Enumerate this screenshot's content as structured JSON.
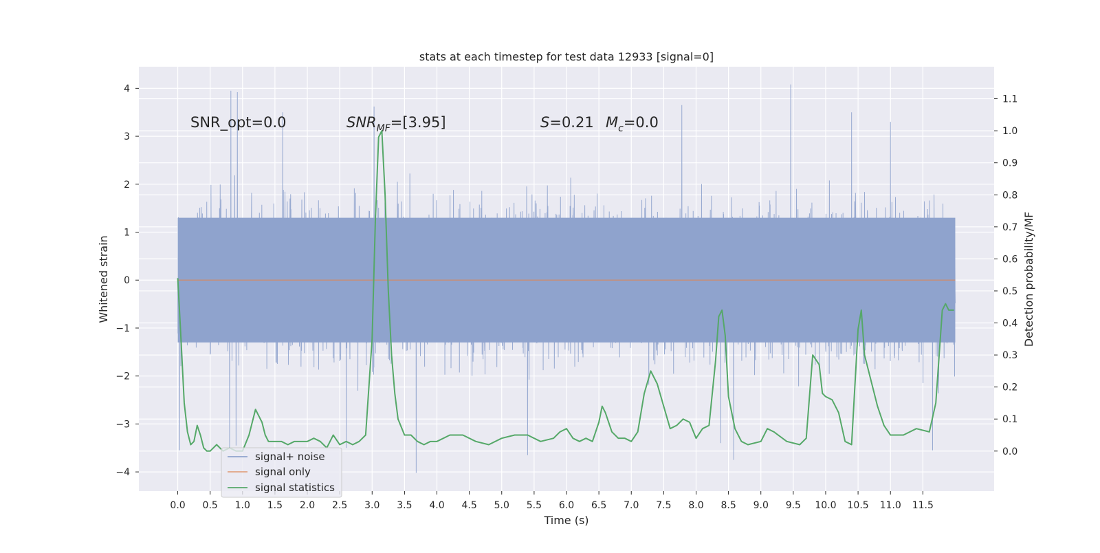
{
  "chart_data": {
    "type": "line",
    "title": "stats at each timestep for test data 12933 [signal=0]",
    "xlabel": "Time (s)",
    "ylabel_left": "Whitened strain",
    "ylabel_right": "Detection probability/MF",
    "xlim": [
      -0.6,
      12.6
    ],
    "ylim_left": [
      -4.4,
      4.45
    ],
    "ylim_right": [
      -0.125,
      1.2
    ],
    "x_ticks": [
      0.0,
      0.5,
      1.0,
      1.5,
      2.0,
      2.5,
      3.0,
      3.5,
      4.0,
      4.5,
      5.0,
      5.5,
      6.0,
      6.5,
      7.0,
      7.5,
      8.0,
      8.5,
      9.0,
      9.5,
      10.0,
      10.5,
      11.0,
      11.5
    ],
    "x_tick_labels": [
      "0.0",
      "0.5",
      "1.0",
      "1.5",
      "2.0",
      "2.5",
      "3.0",
      "3.5",
      "4.0",
      "4.5",
      "5.0",
      "5.5",
      "6.0",
      "6.5",
      "7.0",
      "7.5",
      "8.0",
      "8.5",
      "9.0",
      "9.5",
      "10.0",
      "10.5",
      "11.0",
      "11.5"
    ],
    "y_left_ticks": [
      4,
      3,
      2,
      1,
      0,
      -1,
      -2,
      -3,
      -4
    ],
    "y_left_tick_labels": [
      "4",
      "3",
      "2",
      "1",
      "0",
      "−1",
      "−2",
      "−3",
      "−4"
    ],
    "y_right_ticks": [
      1.1,
      1.0,
      0.9,
      0.8,
      0.7,
      0.6,
      0.5,
      0.4,
      0.3,
      0.2,
      0.1,
      0.0
    ],
    "y_right_tick_labels": [
      "1.1",
      "1.0",
      "0.9",
      "0.8",
      "0.7",
      "0.6",
      "0.5",
      "0.4",
      "0.3",
      "0.2",
      "0.1",
      "0.0"
    ],
    "grid": true,
    "legend_position": "lower-left",
    "annotations": {
      "snr_opt": "SNR_opt=0.0",
      "snr_mf_prefix": "SNR",
      "snr_mf_sub": "MF",
      "snr_mf_value": "=[3.95]",
      "s_prefix": "S",
      "s_value": "=0.21",
      "mc_prefix": "M",
      "mc_sub": "c",
      "mc_value": "=0.0"
    },
    "series": [
      {
        "name": "signal+ noise",
        "axis": "left",
        "color": "#8fa3cd",
        "x_range": [
          0.0,
          12.0
        ],
        "typical_range": [
          -1.9,
          1.9
        ],
        "extremes": [
          [
            0.82,
            3.95
          ],
          [
            0.92,
            3.92
          ],
          [
            1.62,
            3.5
          ],
          [
            3.03,
            3.62
          ],
          [
            7.78,
            3.65
          ],
          [
            9.46,
            4.08
          ],
          [
            10.4,
            3.5
          ],
          [
            11.0,
            3.3
          ],
          [
            0.03,
            -3.55
          ],
          [
            0.8,
            -3.5
          ],
          [
            0.9,
            -3.45
          ],
          [
            2.6,
            -3.5
          ],
          [
            3.68,
            -4.02
          ],
          [
            5.4,
            -3.65
          ],
          [
            8.38,
            -3.4
          ],
          [
            8.58,
            -3.75
          ],
          [
            11.65,
            -3.55
          ]
        ]
      },
      {
        "name": "signal only",
        "axis": "left",
        "color": "#dd8452",
        "x": [
          0.0,
          12.0
        ],
        "y": [
          0.0,
          0.0
        ]
      },
      {
        "name": "signal statistics",
        "axis": "right",
        "color": "#55a868",
        "x": [
          0.0,
          0.05,
          0.1,
          0.15,
          0.2,
          0.25,
          0.3,
          0.35,
          0.4,
          0.45,
          0.5,
          0.6,
          0.7,
          0.8,
          0.9,
          1.0,
          1.1,
          1.2,
          1.25,
          1.3,
          1.35,
          1.4,
          1.5,
          1.6,
          1.7,
          1.8,
          1.9,
          2.0,
          2.1,
          2.2,
          2.3,
          2.4,
          2.5,
          2.6,
          2.7,
          2.8,
          2.9,
          3.0,
          3.05,
          3.1,
          3.15,
          3.2,
          3.25,
          3.3,
          3.35,
          3.4,
          3.5,
          3.6,
          3.7,
          3.8,
          3.9,
          4.0,
          4.2,
          4.4,
          4.6,
          4.8,
          5.0,
          5.2,
          5.4,
          5.6,
          5.8,
          5.9,
          6.0,
          6.1,
          6.2,
          6.3,
          6.4,
          6.5,
          6.55,
          6.6,
          6.7,
          6.8,
          6.9,
          7.0,
          7.1,
          7.2,
          7.3,
          7.4,
          7.5,
          7.6,
          7.7,
          7.8,
          7.9,
          8.0,
          8.1,
          8.2,
          8.3,
          8.35,
          8.4,
          8.45,
          8.5,
          8.6,
          8.7,
          8.8,
          9.0,
          9.1,
          9.2,
          9.4,
          9.6,
          9.7,
          9.8,
          9.9,
          9.95,
          10.0,
          10.1,
          10.2,
          10.3,
          10.4,
          10.5,
          10.55,
          10.6,
          10.7,
          10.8,
          10.9,
          11.0,
          11.1,
          11.2,
          11.4,
          11.6,
          11.7,
          11.8,
          11.85,
          11.9,
          11.95,
          11.98
        ],
        "y": [
          0.54,
          0.35,
          0.15,
          0.06,
          0.02,
          0.03,
          0.08,
          0.05,
          0.01,
          0.0,
          0.0,
          0.02,
          0.0,
          0.01,
          0.0,
          0.0,
          0.05,
          0.13,
          0.11,
          0.09,
          0.05,
          0.03,
          0.03,
          0.03,
          0.02,
          0.03,
          0.03,
          0.03,
          0.04,
          0.03,
          0.01,
          0.05,
          0.02,
          0.03,
          0.02,
          0.03,
          0.05,
          0.35,
          0.72,
          0.98,
          1.0,
          0.8,
          0.5,
          0.3,
          0.18,
          0.1,
          0.05,
          0.05,
          0.03,
          0.02,
          0.03,
          0.03,
          0.05,
          0.05,
          0.03,
          0.02,
          0.04,
          0.05,
          0.05,
          0.03,
          0.04,
          0.06,
          0.07,
          0.04,
          0.03,
          0.04,
          0.03,
          0.09,
          0.14,
          0.12,
          0.06,
          0.04,
          0.04,
          0.03,
          0.06,
          0.18,
          0.25,
          0.21,
          0.14,
          0.07,
          0.08,
          0.1,
          0.09,
          0.04,
          0.07,
          0.08,
          0.28,
          0.42,
          0.44,
          0.36,
          0.17,
          0.07,
          0.03,
          0.02,
          0.03,
          0.07,
          0.06,
          0.03,
          0.02,
          0.04,
          0.3,
          0.27,
          0.18,
          0.17,
          0.16,
          0.12,
          0.03,
          0.02,
          0.38,
          0.44,
          0.3,
          0.22,
          0.14,
          0.08,
          0.05,
          0.05,
          0.05,
          0.07,
          0.06,
          0.15,
          0.44,
          0.46,
          0.44,
          0.44,
          0.44
        ]
      }
    ]
  }
}
